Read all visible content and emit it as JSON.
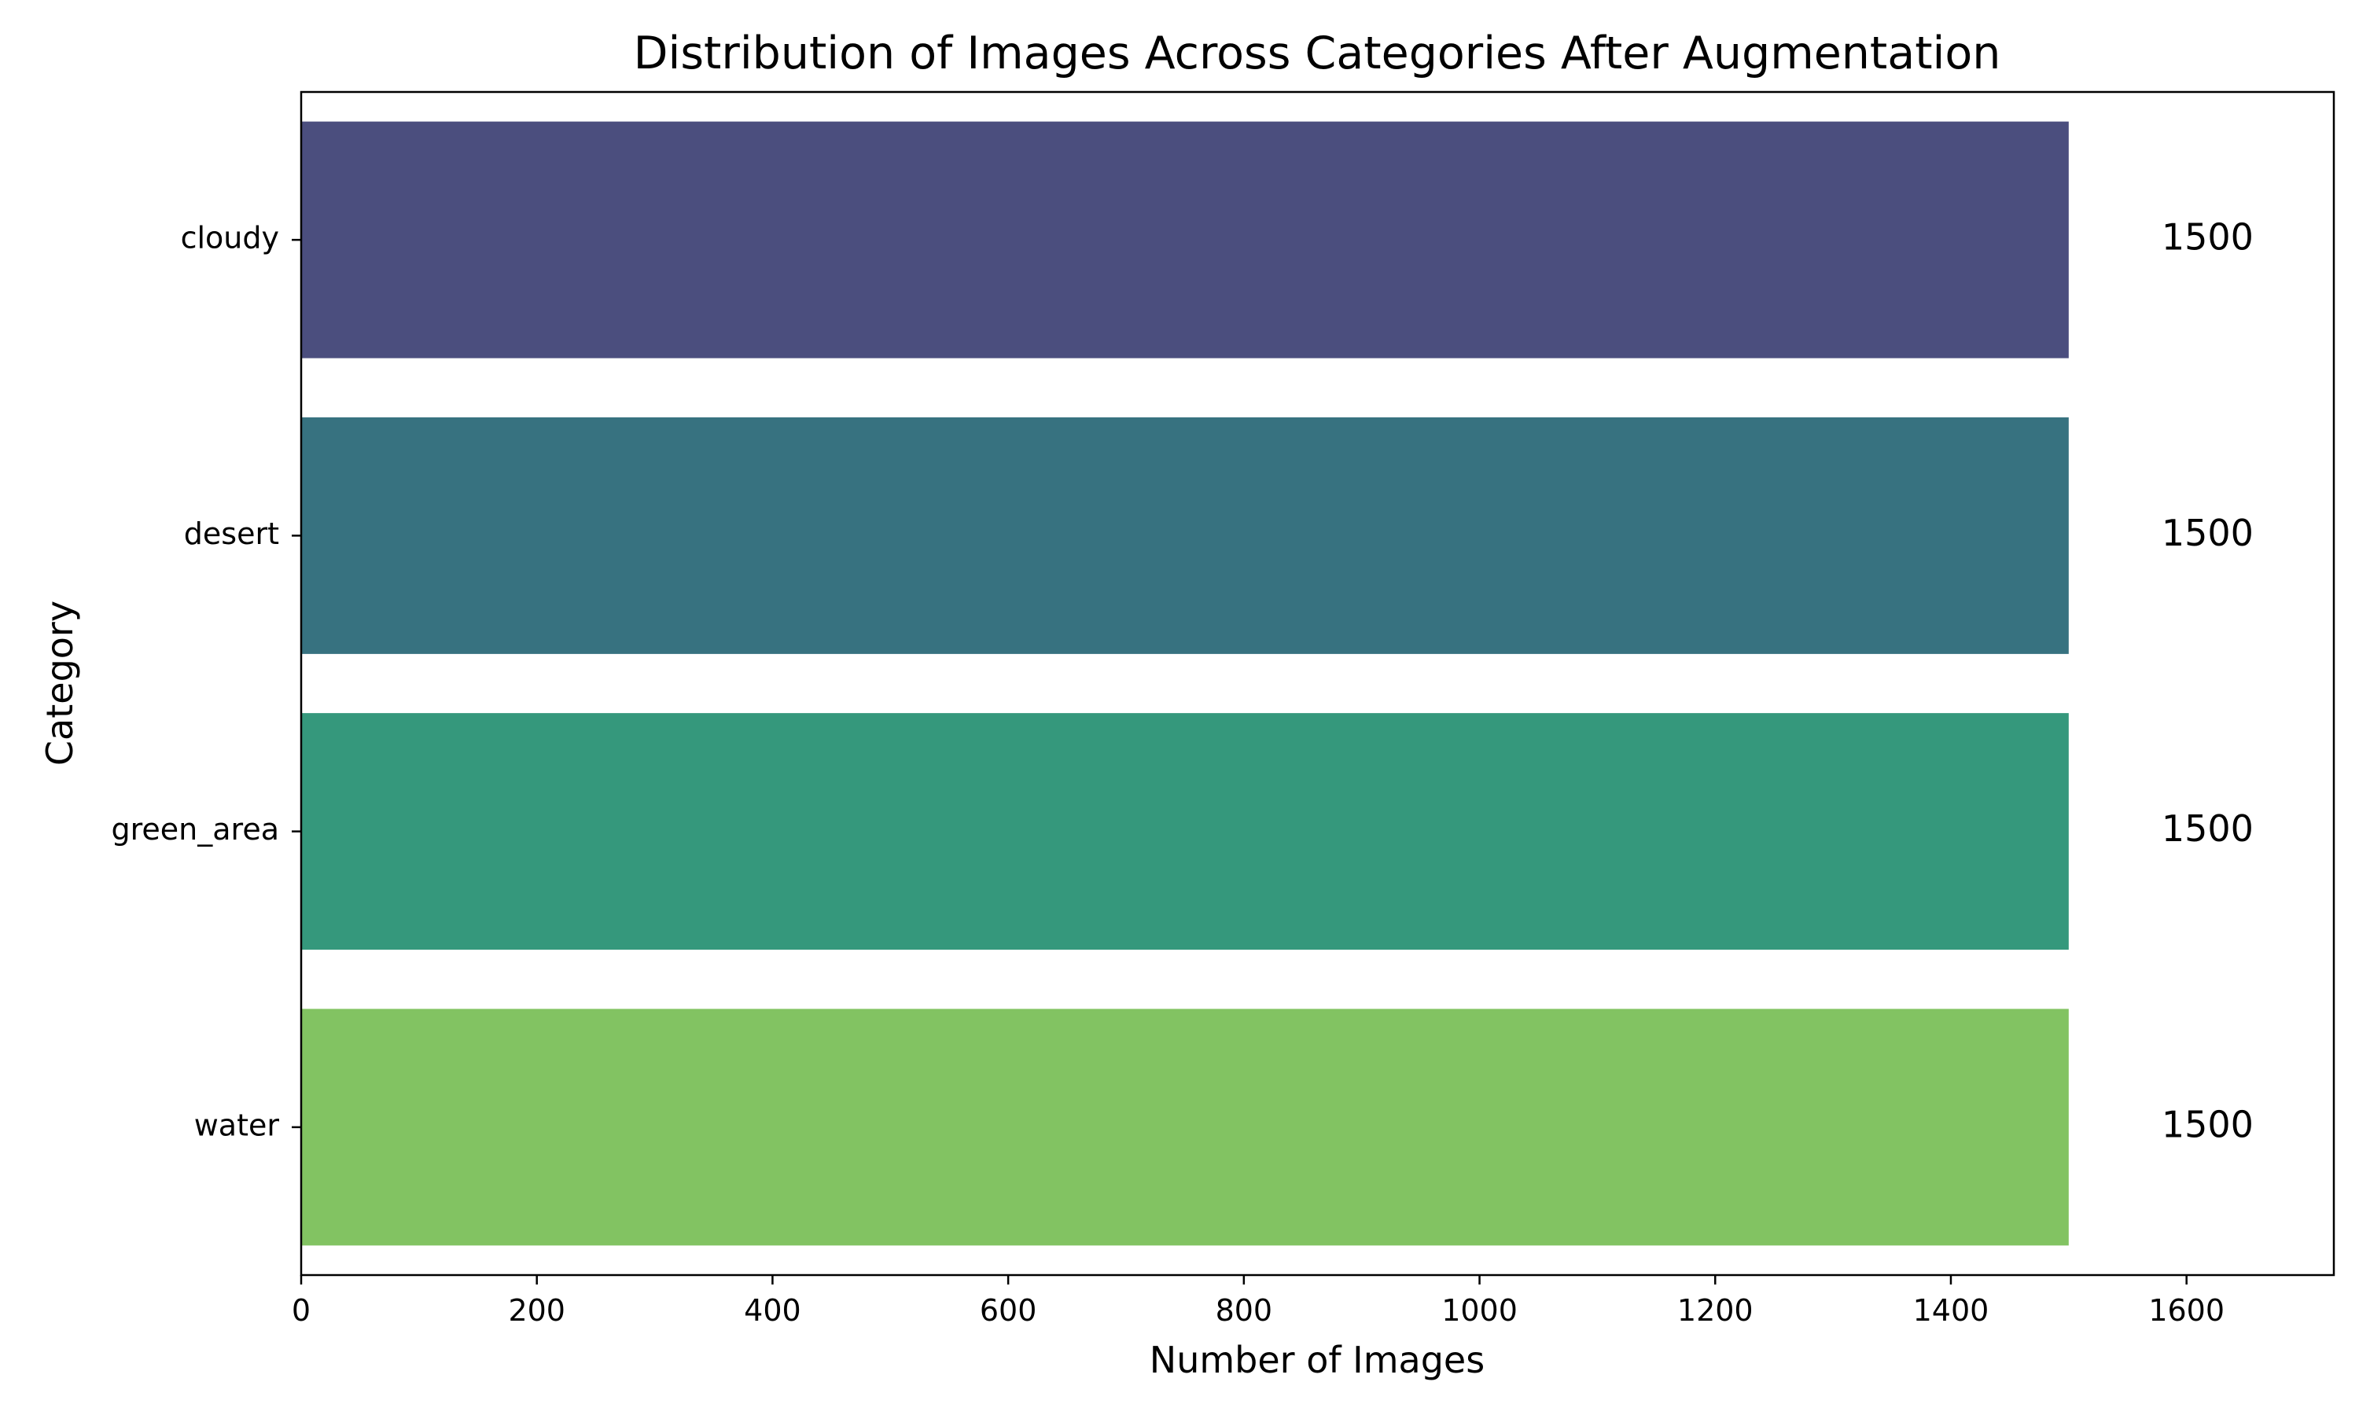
{
  "chart_data": {
    "type": "bar",
    "orientation": "horizontal",
    "title": "Distribution of Images Across Categories After Augmentation",
    "xlabel": "Number of Images",
    "ylabel": "Category",
    "categories": [
      "cloudy",
      "desert",
      "green_area",
      "water"
    ],
    "values": [
      1500,
      1500,
      1500,
      1500
    ],
    "data_labels": [
      "1500",
      "1500",
      "1500",
      "1500"
    ],
    "colors": [
      "#4b4e7e",
      "#377280",
      "#35987c",
      "#82c362"
    ],
    "xlim": [
      0,
      1725
    ],
    "xticks": [
      0,
      200,
      400,
      600,
      800,
      1000,
      1200,
      1400,
      1600
    ],
    "grid": false,
    "legend": "none"
  }
}
